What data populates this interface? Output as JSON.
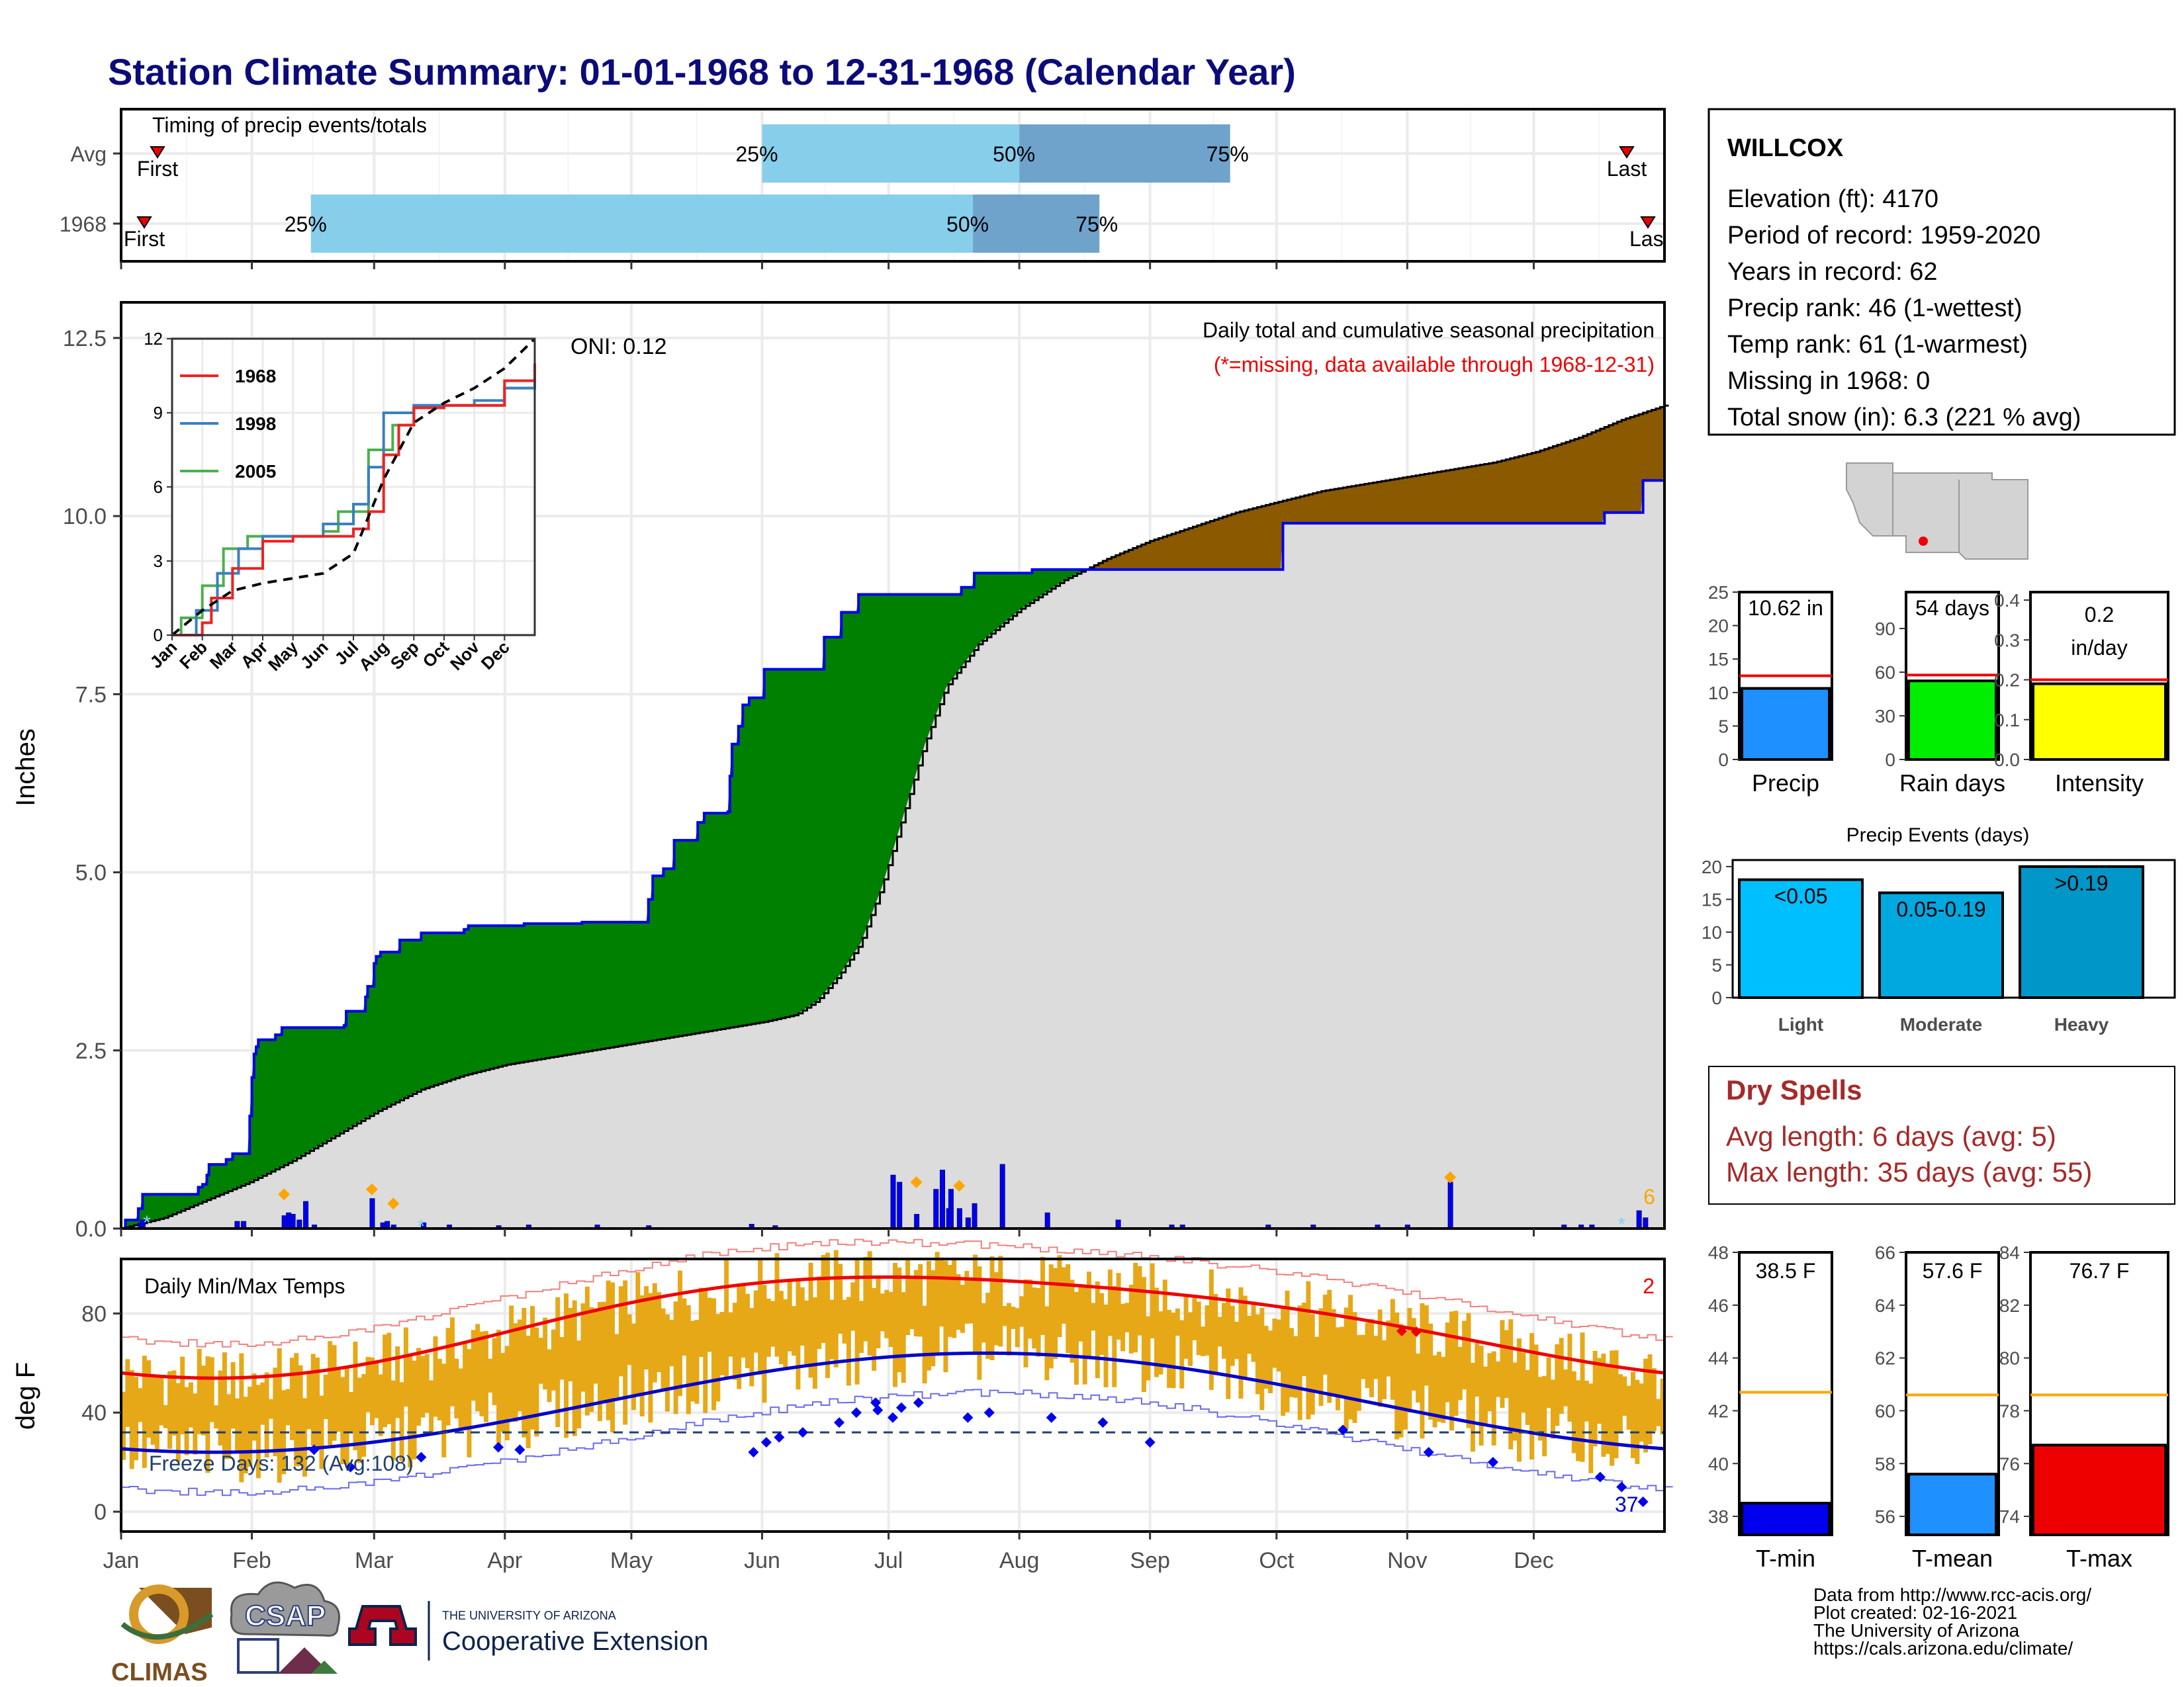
{
  "page": {
    "title": "Station Climate Summary: 01-01-1968 to 12-31-1968 (Calendar Year)",
    "credits": [
      "Data from http://www.rcc-acis.org/",
      "Plot created: 02-16-2021",
      "The University of Arizona",
      "https://cals.arizona.edu/climate/"
    ],
    "logos": {
      "climas": "CLIMAS",
      "csap": "CSAP",
      "ua_small": "THE UNIVERSITY OF ARIZONA",
      "ua_big": "Cooperative Extension"
    }
  },
  "colors": {
    "green": "#008000",
    "brown": "#8B5A00",
    "grey": "#DCDCDC",
    "blue": "#0000EE",
    "orange": "#E6A817",
    "lightblue": "#87CEEB",
    "midblue": "#6FA3CC"
  },
  "station": {
    "name": "WILLCOX",
    "lines": [
      "Elevation (ft): 4170",
      "Period of record: 1959-2020",
      "Years in record: 62",
      "Precip rank: 46 (1-wettest)",
      "Temp rank: 61 (1-warmest)",
      "Missing in 1968: 0",
      "Total snow (in): 6.3 (221 % avg)"
    ]
  },
  "dry_spells": {
    "title": "Dry Spells",
    "avg": "Avg length: 6 days (avg: 5)",
    "max": "Max length: 35 days (avg: 55)"
  },
  "chart_data": [
    {
      "type": "timeline",
      "title": "Timing of precip events/totals",
      "rows": [
        {
          "label": "Avg",
          "first": "First",
          "last": "Last",
          "p25": "Jun 1",
          "p50": "Aug 1",
          "p75": "Sep 20"
        },
        {
          "label": "1968",
          "first": "First",
          "last": "Las",
          "p25": "Feb 15",
          "p50": "Jul 21",
          "p75": "Aug 20"
        }
      ],
      "pct_labels": [
        "25%",
        "50%",
        "75%"
      ],
      "months": [
        "Jan",
        "Feb",
        "Mar",
        "Apr",
        "May",
        "Jun",
        "Jul",
        "Aug",
        "Sep",
        "Oct",
        "Nov",
        "Dec"
      ]
    },
    {
      "type": "area",
      "title": "Daily total and cumulative seasonal precipitation",
      "subtitle": "(*=missing, data available through 1968-12-31)",
      "ylabel": "Inches",
      "ylim": [
        0,
        13
      ],
      "yticks": [
        "0.0",
        "2.5",
        "5.0",
        "7.5",
        "10.0",
        "12.5"
      ],
      "oni": "ONI: 0.12",
      "corner_value": "6",
      "cum_1968": [
        [
          0,
          0
        ],
        [
          2,
          0.12
        ],
        [
          8,
          0.28
        ],
        [
          10,
          0.48
        ],
        [
          35,
          0.48
        ],
        [
          36,
          0.58
        ],
        [
          38,
          0.62
        ],
        [
          40,
          0.75
        ],
        [
          41,
          0.9
        ],
        [
          49,
          0.97
        ],
        [
          52,
          1.05
        ],
        [
          60,
          1.58
        ],
        [
          61,
          2.12
        ],
        [
          62,
          2.45
        ],
        [
          63,
          2.55
        ],
        [
          64,
          2.65
        ],
        [
          72,
          2.72
        ],
        [
          75,
          2.82
        ],
        [
          104,
          2.85
        ],
        [
          105,
          3.05
        ],
        [
          113,
          3.05
        ],
        [
          114,
          3.25
        ],
        [
          115,
          3.4
        ],
        [
          118,
          3.72
        ],
        [
          119,
          3.82
        ],
        [
          121,
          3.88
        ],
        [
          128,
          3.88
        ],
        [
          130,
          4.05
        ],
        [
          135,
          4.05
        ],
        [
          140,
          4.15
        ],
        [
          158,
          4.15
        ],
        [
          160,
          4.2
        ],
        [
          162,
          4.25
        ],
        [
          164,
          4.25
        ],
        [
          188,
          4.28
        ],
        [
          200,
          4.28
        ],
        [
          215,
          4.3
        ],
        [
          244,
          4.3
        ],
        [
          246,
          4.62
        ],
        [
          248,
          4.95
        ],
        [
          253,
          5.05
        ],
        [
          258,
          5.45
        ],
        [
          268,
          5.45
        ],
        [
          269,
          5.7
        ],
        [
          272,
          5.83
        ],
        [
          283,
          5.85
        ],
        [
          284,
          6.35
        ],
        [
          285,
          6.8
        ],
        [
          288,
          7.05
        ],
        [
          290,
          7.35
        ],
        [
          293,
          7.45
        ],
        [
          300,
          7.85
        ],
        [
          325,
          7.85
        ],
        [
          328,
          8.3
        ],
        [
          336,
          8.65
        ],
        [
          344,
          8.9
        ],
        [
          390,
          8.9
        ],
        [
          392,
          9.0
        ],
        [
          398,
          9.2
        ],
        [
          425,
          9.25
        ],
        [
          540,
          9.25
        ],
        [
          542,
          9.9
        ],
        [
          690,
          9.9
        ],
        [
          692,
          10.05
        ],
        [
          708,
          10.05
        ],
        [
          710,
          10.5
        ],
        [
          720,
          10.6
        ]
      ],
      "cum_avg": [
        [
          0,
          0
        ],
        [
          20,
          0.15
        ],
        [
          40,
          0.4
        ],
        [
          60,
          0.65
        ],
        [
          80,
          0.95
        ],
        [
          100,
          1.3
        ],
        [
          120,
          1.65
        ],
        [
          140,
          1.95
        ],
        [
          160,
          2.15
        ],
        [
          180,
          2.3
        ],
        [
          200,
          2.4
        ],
        [
          220,
          2.5
        ],
        [
          240,
          2.6
        ],
        [
          260,
          2.7
        ],
        [
          280,
          2.8
        ],
        [
          300,
          2.9
        ],
        [
          315,
          3.0
        ],
        [
          325,
          3.2
        ],
        [
          335,
          3.55
        ],
        [
          345,
          4.0
        ],
        [
          355,
          4.8
        ],
        [
          365,
          5.8
        ],
        [
          375,
          6.8
        ],
        [
          385,
          7.6
        ],
        [
          400,
          8.2
        ],
        [
          420,
          8.7
        ],
        [
          440,
          9.1
        ],
        [
          460,
          9.4
        ],
        [
          480,
          9.65
        ],
        [
          500,
          9.85
        ],
        [
          520,
          10.05
        ],
        [
          540,
          10.2
        ],
        [
          560,
          10.35
        ],
        [
          580,
          10.45
        ],
        [
          600,
          10.55
        ],
        [
          620,
          10.65
        ],
        [
          640,
          10.75
        ],
        [
          660,
          10.9
        ],
        [
          680,
          11.1
        ],
        [
          700,
          11.35
        ],
        [
          720,
          11.55
        ]
      ],
      "daily_bars": [
        [
          9,
          0.08
        ],
        [
          10,
          0.12
        ],
        [
          54,
          0.1
        ],
        [
          57,
          0.1
        ],
        [
          76,
          0.18
        ],
        [
          78,
          0.22
        ],
        [
          80,
          0.2
        ],
        [
          83,
          0.12
        ],
        [
          86,
          0.38
        ],
        [
          90,
          0.05
        ],
        [
          117,
          0.42
        ],
        [
          122,
          0.08
        ],
        [
          124,
          0.1
        ],
        [
          127,
          0.05
        ],
        [
          141,
          0.08
        ],
        [
          153,
          0.05
        ],
        [
          176,
          0.04
        ],
        [
          190,
          0.05
        ],
        [
          222,
          0.05
        ],
        [
          246,
          0.04
        ],
        [
          294,
          0.06
        ],
        [
          305,
          0.04
        ],
        [
          360,
          0.75
        ],
        [
          363,
          0.65
        ],
        [
          371,
          0.2
        ],
        [
          380,
          0.55
        ],
        [
          383,
          0.82
        ],
        [
          386,
          0.28
        ],
        [
          387,
          0.55
        ],
        [
          391,
          0.28
        ],
        [
          395,
          0.15
        ],
        [
          398,
          0.35
        ],
        [
          411,
          0.9
        ],
        [
          432,
          0.22
        ],
        [
          465,
          0.12
        ],
        [
          490,
          0.05
        ],
        [
          495,
          0.05
        ],
        [
          535,
          0.05
        ],
        [
          556,
          0.05
        ],
        [
          586,
          0.05
        ],
        [
          600,
          0.05
        ],
        [
          620,
          0.65
        ],
        [
          673,
          0.05
        ],
        [
          681,
          0.05
        ],
        [
          686,
          0.05
        ],
        [
          708,
          0.25
        ],
        [
          711,
          0.15
        ]
      ],
      "series": [
        {
          "name": "1968"
        },
        {
          "name": "1998"
        },
        {
          "name": "2005"
        }
      ],
      "inset": {
        "ylim": [
          0,
          12
        ],
        "yticks": [
          "0",
          "3",
          "6",
          "9",
          "12"
        ],
        "months": [
          "Jan",
          "Feb",
          "Mar",
          "Apr",
          "May",
          "Jun",
          "Jul",
          "Aug",
          "Sep",
          "Oct",
          "Nov",
          "Dec"
        ],
        "s1968": [
          [
            0,
            0
          ],
          [
            1,
            0.5
          ],
          [
            1.3,
            1.5
          ],
          [
            2,
            2.7
          ],
          [
            3,
            3.8
          ],
          [
            4,
            4
          ],
          [
            5,
            4
          ],
          [
            6,
            4.3
          ],
          [
            6.5,
            5
          ],
          [
            7,
            7.3
          ],
          [
            7.5,
            8.5
          ],
          [
            8,
            9.2
          ],
          [
            9,
            9.3
          ],
          [
            10,
            9.3
          ],
          [
            11,
            10.3
          ],
          [
            12,
            11
          ]
        ],
        "s1998": [
          [
            0,
            0
          ],
          [
            0.8,
            1.0
          ],
          [
            1.5,
            2.5
          ],
          [
            2.2,
            3.5
          ],
          [
            3,
            4
          ],
          [
            4,
            4
          ],
          [
            5,
            4.5
          ],
          [
            6,
            5.3
          ],
          [
            6.5,
            6.8
          ],
          [
            7,
            9
          ],
          [
            8,
            9.3
          ],
          [
            9,
            9.3
          ],
          [
            10,
            9.5
          ],
          [
            11,
            10
          ],
          [
            12,
            10.7
          ]
        ],
        "s2005": [
          [
            0,
            0
          ],
          [
            0.3,
            0.7
          ],
          [
            1,
            2
          ],
          [
            1.7,
            3.5
          ],
          [
            2.5,
            4
          ],
          [
            4,
            4
          ],
          [
            5,
            4.2
          ],
          [
            5.5,
            5
          ],
          [
            6.5,
            7.5
          ],
          [
            7.3,
            8.5
          ],
          [
            8,
            9.3
          ],
          [
            9,
            9.3
          ],
          [
            10,
            9.3
          ],
          [
            11,
            10
          ],
          [
            12,
            10.3
          ]
        ],
        "savg": [
          [
            0,
            0
          ],
          [
            1,
            1
          ],
          [
            2,
            1.8
          ],
          [
            3,
            2.1
          ],
          [
            4,
            2.3
          ],
          [
            5,
            2.5
          ],
          [
            6,
            3.3
          ],
          [
            7,
            6.3
          ],
          [
            8,
            8.6
          ],
          [
            9,
            9.4
          ],
          [
            10,
            10.0
          ],
          [
            11,
            10.8
          ],
          [
            12,
            12
          ]
        ]
      }
    },
    {
      "type": "bar",
      "xlabel": "Precip",
      "value_label": "10.62 in",
      "value": 10.62,
      "reference": 12.5,
      "ylim": [
        0,
        25
      ],
      "yticks": [
        "0",
        "5",
        "10",
        "15",
        "20",
        "25"
      ]
    },
    {
      "type": "bar",
      "xlabel": "Rain days",
      "value_label": "54 days",
      "value": 54,
      "reference": 58,
      "ylim": [
        0,
        115
      ],
      "yticks": [
        "0",
        "30",
        "60",
        "90"
      ]
    },
    {
      "type": "bar",
      "xlabel": "Intensity",
      "value_label_1": "0.2",
      "value_label_2": "in/day",
      "value": 0.19,
      "reference": 0.2,
      "ylim": [
        0,
        0.42
      ],
      "yticks": [
        "0.0",
        "0.1",
        "0.2",
        "0.3",
        "0.4"
      ]
    },
    {
      "type": "bar",
      "title": "Precip Events (days)",
      "categories": [
        "Light",
        "Moderate",
        "Heavy"
      ],
      "bar_labels": [
        "<0.05",
        "0.05-0.19",
        ">0.19"
      ],
      "values": [
        18,
        16,
        20
      ],
      "ylim": [
        0,
        21
      ],
      "yticks": [
        "0",
        "5",
        "10",
        "15",
        "20"
      ]
    },
    {
      "type": "line",
      "title": "Daily Min/Max Temps",
      "ylabel": "deg F",
      "ylim": [
        -8,
        102
      ],
      "yticks": [
        "0",
        "40",
        "80"
      ],
      "freeze_days": "Freeze Days: 132 (Avg:108)",
      "freeze_line": 32,
      "count_red": "2",
      "count_blue": "37",
      "months": [
        "Jan",
        "Feb",
        "Mar",
        "Apr",
        "May",
        "Jun",
        "Jul",
        "Aug",
        "Sep",
        "Oct",
        "Nov",
        "Dec"
      ]
    },
    {
      "type": "bar",
      "xlabel": "T-min",
      "value_label": "38.5 F",
      "value": 38.5,
      "reference": 42.7,
      "ylim": [
        37.3,
        48
      ],
      "yticks": [
        "38",
        "40",
        "42",
        "44",
        "46",
        "48"
      ]
    },
    {
      "type": "bar",
      "xlabel": "T-mean",
      "value_label": "57.6 F",
      "value": 57.6,
      "reference": 60.6,
      "ylim": [
        55.3,
        66
      ],
      "yticks": [
        "56",
        "58",
        "60",
        "62",
        "64",
        "66"
      ]
    },
    {
      "type": "bar",
      "xlabel": "T-max",
      "value_label": "76.7 F",
      "value": 76.7,
      "reference": 78.6,
      "ylim": [
        73.3,
        84
      ],
      "yticks": [
        "74",
        "76",
        "78",
        "80",
        "82",
        "84"
      ]
    }
  ]
}
